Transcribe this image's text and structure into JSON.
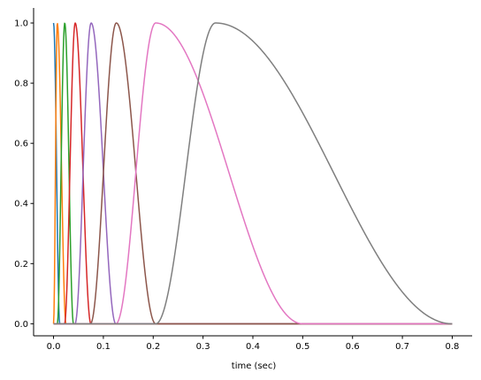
{
  "chart_data": {
    "type": "line",
    "title": "",
    "xlabel": "time (sec)",
    "ylabel": "",
    "xlim": [
      -0.04,
      0.84
    ],
    "ylim": [
      -0.04,
      1.05
    ],
    "x_ticks": [
      "0.0",
      "0.1",
      "0.2",
      "0.3",
      "0.4",
      "0.5",
      "0.6",
      "0.7",
      "0.8"
    ],
    "y_ticks": [
      "0.0",
      "0.2",
      "0.4",
      "0.6",
      "0.8",
      "1.0"
    ],
    "grid": false,
    "legend": "none",
    "x_range": [
      0,
      0.8
    ],
    "series": [
      {
        "color": "#1f77b4",
        "peak": 0.0,
        "start": 0.0,
        "end": 0.0125
      },
      {
        "color": "#ff7f0e",
        "peak": 0.0075,
        "start": 0.0,
        "end": 0.025
      },
      {
        "color": "#2ca02c",
        "peak": 0.0225,
        "start": 0.0075,
        "end": 0.04
      },
      {
        "color": "#d62728",
        "peak": 0.0435,
        "start": 0.022,
        "end": 0.075
      },
      {
        "color": "#9467bd",
        "peak": 0.0755,
        "start": 0.043,
        "end": 0.125
      },
      {
        "color": "#8c564b",
        "peak": 0.126,
        "start": 0.074,
        "end": 0.205
      },
      {
        "color": "#e377c2",
        "peak": 0.205,
        "start": 0.125,
        "end": 0.5
      },
      {
        "color": "#7f7f7f",
        "peak": 0.325,
        "start": 0.205,
        "end": 0.8
      }
    ]
  }
}
